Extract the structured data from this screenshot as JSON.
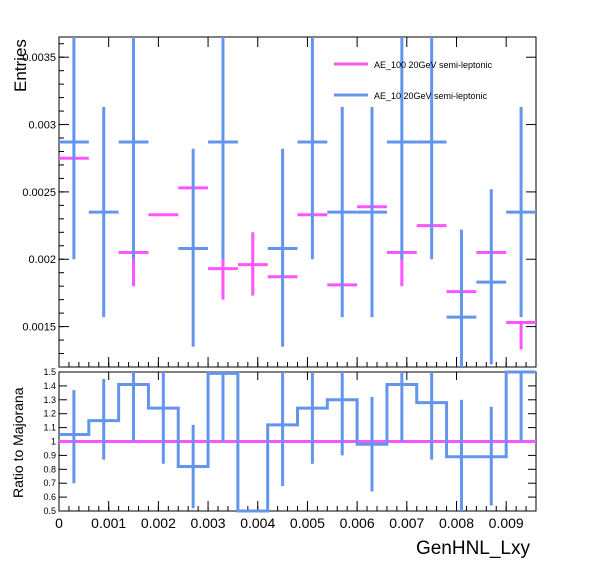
{
  "chart_data": [
    {
      "type": "line",
      "panel": "top",
      "ylabel": "Entries",
      "ylim": [
        0.0012,
        0.00365
      ],
      "yticks": [
        {
          "v": 0.0015,
          "label": "0.0015"
        },
        {
          "v": 0.002,
          "label": "0.002"
        },
        {
          "v": 0.0025,
          "label": "0.0025"
        },
        {
          "v": 0.003,
          "label": "0.003"
        },
        {
          "v": 0.0035,
          "label": "0.0035"
        }
      ],
      "legend": "top-right",
      "series": [
        {
          "name": "AE_100 20GeV semi-leptonic",
          "color": "#ff55ff",
          "points": [
            {
              "x": 0.0003,
              "y": 0.00275,
              "lo": 0.00275,
              "hi": 0.00275
            },
            {
              "x": 0.0015,
              "y": 0.00205,
              "lo": 0.0018,
              "hi": 0.00205
            },
            {
              "x": 0.0021,
              "y": 0.00233,
              "lo": 0.00233,
              "hi": 0.00233
            },
            {
              "x": 0.0027,
              "y": 0.00253,
              "lo": 0.00253,
              "hi": 0.00253
            },
            {
              "x": 0.0033,
              "y": 0.00193,
              "lo": 0.0017,
              "hi": 0.0021
            },
            {
              "x": 0.0039,
              "y": 0.00196,
              "lo": 0.00173,
              "hi": 0.0022
            },
            {
              "x": 0.0045,
              "y": 0.00187,
              "lo": 0.00187,
              "hi": 0.00187
            },
            {
              "x": 0.0051,
              "y": 0.00233,
              "lo": 0.00233,
              "hi": 0.00233
            },
            {
              "x": 0.0057,
              "y": 0.00181,
              "lo": 0.00181,
              "hi": 0.00181
            },
            {
              "x": 0.0063,
              "y": 0.00239,
              "lo": 0.00239,
              "hi": 0.00239
            },
            {
              "x": 0.0069,
              "y": 0.00205,
              "lo": 0.0018,
              "hi": 0.00205
            },
            {
              "x": 0.0075,
              "y": 0.00225,
              "lo": 0.00225,
              "hi": 0.00225
            },
            {
              "x": 0.0081,
              "y": 0.00176,
              "lo": 0.00176,
              "hi": 0.00176
            },
            {
              "x": 0.0087,
              "y": 0.00205,
              "lo": 0.00205,
              "hi": 0.00205
            },
            {
              "x": 0.0093,
              "y": 0.00153,
              "lo": 0.00133,
              "hi": 0.00153
            }
          ]
        },
        {
          "name": "AE_10 20GeV semi-leptonic",
          "color": "#6495ed",
          "points": [
            {
              "x": 0.0003,
              "y": 0.00287,
              "lo": 0.002,
              "hi": 0.00365
            },
            {
              "x": 0.0009,
              "y": 0.00235,
              "lo": 0.00157,
              "hi": 0.00313
            },
            {
              "x": 0.0015,
              "y": 0.00287,
              "lo": 0.002,
              "hi": 0.00365
            },
            {
              "x": 0.0027,
              "y": 0.00208,
              "lo": 0.00135,
              "hi": 0.00282
            },
            {
              "x": 0.0033,
              "y": 0.00287,
              "lo": 0.002,
              "hi": 0.00365
            },
            {
              "x": 0.0045,
              "y": 0.00208,
              "lo": 0.00135,
              "hi": 0.00282
            },
            {
              "x": 0.0051,
              "y": 0.00287,
              "lo": 0.002,
              "hi": 0.00365
            },
            {
              "x": 0.0057,
              "y": 0.00235,
              "lo": 0.00157,
              "hi": 0.00313
            },
            {
              "x": 0.0063,
              "y": 0.00235,
              "lo": 0.00157,
              "hi": 0.00313
            },
            {
              "x": 0.0069,
              "y": 0.00287,
              "lo": 0.002,
              "hi": 0.00365
            },
            {
              "x": 0.0075,
              "y": 0.00287,
              "lo": 0.002,
              "hi": 0.00365
            },
            {
              "x": 0.0081,
              "y": 0.00157,
              "lo": 0.00105,
              "hi": 0.00222
            },
            {
              "x": 0.0087,
              "y": 0.00183,
              "lo": 0.00122,
              "hi": 0.00252
            },
            {
              "x": 0.0093,
              "y": 0.00235,
              "lo": 0.00157,
              "hi": 0.00313
            }
          ]
        }
      ]
    },
    {
      "type": "line",
      "panel": "ratio",
      "ylabel": "Ratio to Majorana",
      "xlabel": "GenHNL_Lxy",
      "xlim": [
        0,
        0.0096
      ],
      "ylim": [
        0.5,
        1.5
      ],
      "yticks": [
        {
          "v": 0.5,
          "label": "0.5"
        },
        {
          "v": 0.6,
          "label": "0.6"
        },
        {
          "v": 0.7,
          "label": "0.7"
        },
        {
          "v": 0.8,
          "label": "0.8"
        },
        {
          "v": 0.9,
          "label": "0.9"
        },
        {
          "v": 1.0,
          "label": "1"
        },
        {
          "v": 1.1,
          "label": "1.1"
        },
        {
          "v": 1.2,
          "label": "1.2"
        },
        {
          "v": 1.3,
          "label": "1.3"
        },
        {
          "v": 1.4,
          "label": "1.4"
        },
        {
          "v": 1.5,
          "label": "1.5"
        }
      ],
      "xticks": [
        {
          "v": 0,
          "label": "0"
        },
        {
          "v": 0.001,
          "label": "0.001"
        },
        {
          "v": 0.002,
          "label": "0.002"
        },
        {
          "v": 0.003,
          "label": "0.003"
        },
        {
          "v": 0.004,
          "label": "0.004"
        },
        {
          "v": 0.005,
          "label": "0.005"
        },
        {
          "v": 0.006,
          "label": "0.006"
        },
        {
          "v": 0.007,
          "label": "0.007"
        },
        {
          "v": 0.008,
          "label": "0.008"
        },
        {
          "v": 0.009,
          "label": "0.009"
        }
      ],
      "reference": {
        "y": 1.0,
        "color": "#ff55ff"
      },
      "series": [
        {
          "color": "#6495ed",
          "bins": [
            {
              "x0": 0.0,
              "x1": 0.0006,
              "y": 1.05,
              "lo": 0.7,
              "hi": 1.37
            },
            {
              "x0": 0.0006,
              "x1": 0.0012,
              "y": 1.15,
              "lo": 0.87,
              "hi": 1.45
            },
            {
              "x0": 0.0012,
              "x1": 0.0018,
              "y": 1.41,
              "lo": 1.0,
              "hi": 1.5
            },
            {
              "x0": 0.0018,
              "x1": 0.0024,
              "y": 1.24,
              "lo": 0.84,
              "hi": 1.5
            },
            {
              "x0": 0.0024,
              "x1": 0.003,
              "y": 0.82,
              "lo": 0.52,
              "hi": 1.12
            },
            {
              "x0": 0.003,
              "x1": 0.0036,
              "y": 1.49,
              "lo": 1.0,
              "hi": 1.5
            },
            {
              "x0": 0.0036,
              "x1": 0.0042,
              "y": 0.5,
              "lo": 0.5,
              "hi": 0.5
            },
            {
              "x0": 0.0042,
              "x1": 0.0048,
              "y": 1.12,
              "lo": 0.68,
              "hi": 1.5
            },
            {
              "x0": 0.0048,
              "x1": 0.0054,
              "y": 1.24,
              "lo": 0.84,
              "hi": 1.5
            },
            {
              "x0": 0.0054,
              "x1": 0.006,
              "y": 1.3,
              "lo": 0.9,
              "hi": 1.5
            },
            {
              "x0": 0.006,
              "x1": 0.0066,
              "y": 0.98,
              "lo": 0.64,
              "hi": 1.32
            },
            {
              "x0": 0.0066,
              "x1": 0.0072,
              "y": 1.41,
              "lo": 1.0,
              "hi": 1.5
            },
            {
              "x0": 0.0072,
              "x1": 0.0078,
              "y": 1.28,
              "lo": 0.87,
              "hi": 1.5
            },
            {
              "x0": 0.0078,
              "x1": 0.0084,
              "y": 0.89,
              "lo": 0.5,
              "hi": 1.3
            },
            {
              "x0": 0.0084,
              "x1": 0.009,
              "y": 0.89,
              "lo": 0.54,
              "hi": 1.25
            },
            {
              "x0": 0.009,
              "x1": 0.0096,
              "y": 1.5,
              "lo": 1.0,
              "hi": 1.5
            }
          ]
        }
      ]
    }
  ]
}
